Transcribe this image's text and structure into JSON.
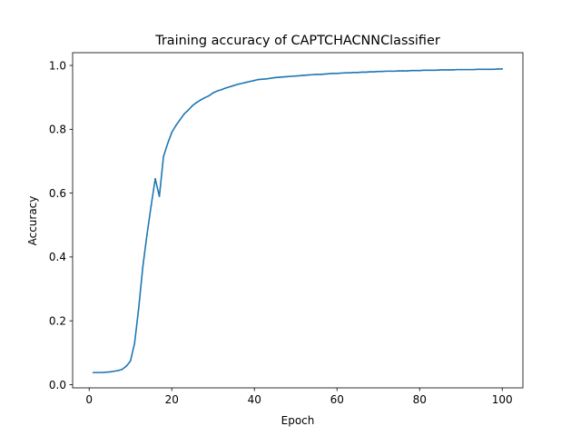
{
  "chart_data": {
    "type": "line",
    "title": "Training accuracy of CAPTCHACNNClassifier",
    "xlabel": "Epoch",
    "ylabel": "Accuracy",
    "xlim": [
      -4,
      105
    ],
    "ylim": [
      -0.01,
      1.04
    ],
    "xticks": [
      0,
      20,
      40,
      60,
      80,
      100
    ],
    "yticks": [
      0.0,
      0.2,
      0.4,
      0.6,
      0.8,
      1.0
    ],
    "xtick_labels": [
      "0",
      "20",
      "40",
      "60",
      "80",
      "100"
    ],
    "ytick_labels": [
      "0.0",
      "0.2",
      "0.4",
      "0.6",
      "0.8",
      "1.0"
    ],
    "grid": false,
    "colors": {
      "line": "#1f77b4",
      "axes": "#000000",
      "background": "#ffffff"
    },
    "series": [
      {
        "x": [
          1,
          2,
          3,
          4,
          5,
          6,
          7,
          8,
          9,
          10,
          11,
          12,
          13,
          14,
          15,
          16,
          17,
          18,
          19,
          20,
          21,
          22,
          23,
          24,
          25,
          26,
          27,
          28,
          29,
          30,
          31,
          32,
          33,
          34,
          35,
          36,
          37,
          38,
          39,
          40,
          41,
          42,
          43,
          44,
          45,
          46,
          47,
          48,
          49,
          50,
          51,
          52,
          53,
          54,
          55,
          56,
          57,
          58,
          59,
          60,
          61,
          62,
          63,
          64,
          65,
          66,
          67,
          68,
          69,
          70,
          71,
          72,
          73,
          74,
          75,
          76,
          77,
          78,
          79,
          80,
          81,
          82,
          83,
          84,
          85,
          86,
          87,
          88,
          89,
          90,
          91,
          92,
          93,
          94,
          95,
          96,
          97,
          98,
          99,
          100
        ],
        "y": [
          0.038,
          0.038,
          0.038,
          0.039,
          0.04,
          0.042,
          0.044,
          0.048,
          0.058,
          0.074,
          0.13,
          0.24,
          0.37,
          0.47,
          0.56,
          0.645,
          0.59,
          0.715,
          0.755,
          0.79,
          0.812,
          0.83,
          0.848,
          0.86,
          0.874,
          0.884,
          0.892,
          0.899,
          0.905,
          0.914,
          0.92,
          0.924,
          0.929,
          0.933,
          0.937,
          0.941,
          0.944,
          0.947,
          0.95,
          0.953,
          0.956,
          0.957,
          0.958,
          0.96,
          0.962,
          0.963,
          0.964,
          0.965,
          0.966,
          0.967,
          0.968,
          0.969,
          0.97,
          0.971,
          0.972,
          0.972,
          0.973,
          0.974,
          0.975,
          0.975,
          0.976,
          0.977,
          0.977,
          0.978,
          0.978,
          0.979,
          0.979,
          0.98,
          0.98,
          0.981,
          0.981,
          0.982,
          0.982,
          0.982,
          0.983,
          0.983,
          0.983,
          0.984,
          0.984,
          0.984,
          0.985,
          0.985,
          0.985,
          0.985,
          0.986,
          0.986,
          0.986,
          0.986,
          0.987,
          0.987,
          0.987,
          0.987,
          0.987,
          0.988,
          0.988,
          0.988,
          0.988,
          0.988,
          0.989,
          0.989
        ]
      }
    ]
  }
}
